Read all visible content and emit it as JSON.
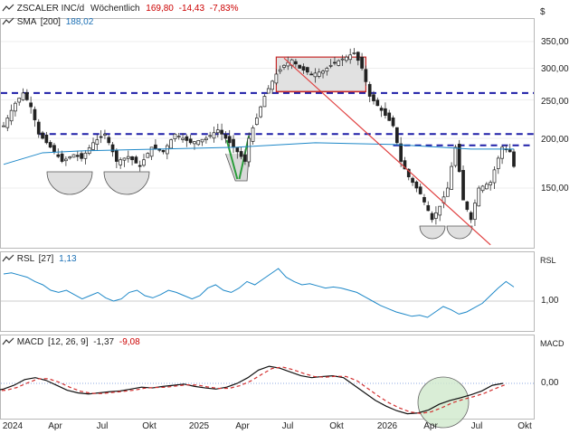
{
  "header": {
    "symbol": "ZSCALER INC/d",
    "interval": "Wöchentlich",
    "price": "169,80",
    "change": "-14,43",
    "change_pct": "-7,83%",
    "sma_label": "SMA",
    "sma_period": "[200]",
    "sma_value": "188,02",
    "currency": "$"
  },
  "rsl_panel": {
    "label": "RSL",
    "period": "[27]",
    "value": "1,13",
    "axis_title": "RSL"
  },
  "macd_panel": {
    "label": "MACD",
    "params": "[12, 26, 9]",
    "value": "-1,37",
    "signal": "-9,08",
    "axis_title": "MACD"
  },
  "price_axis": [
    "350,00",
    "300,00",
    "250,00",
    "200,00",
    "150,00"
  ],
  "rsl_axis": [
    "1,00"
  ],
  "macd_axis": [
    "0,00"
  ],
  "x_axis": [
    "2024",
    "Apr",
    "Jul",
    "Okt",
    "2025",
    "Apr",
    "Jul",
    "Okt",
    "2026",
    "Apr",
    "Jul",
    "Okt"
  ],
  "colors": {
    "up": "#2e7d32",
    "down": "#c62828",
    "sma": "#1e88c8",
    "support": "#1f1fa8",
    "trendline": "#e04040",
    "pattern_fill": "#d9d9d9",
    "pattern_green": "#2a9d3a",
    "macd": "#111111",
    "macd_signal": "#d32f2f"
  },
  "chart_data": [
    {
      "type": "candlestick",
      "title": "ZSCALER INC/d",
      "period": "weekly",
      "x_start": "2024-01",
      "ylim": [
        105,
        370
      ],
      "y_scale": "log",
      "close_trace": [
        [
          0,
          215
        ],
        [
          3,
          245
        ],
        [
          5,
          260
        ],
        [
          7,
          240
        ],
        [
          9,
          205
        ],
        [
          12,
          190
        ],
        [
          15,
          175
        ],
        [
          18,
          182
        ],
        [
          20,
          178
        ],
        [
          23,
          195
        ],
        [
          26,
          205
        ],
        [
          29,
          175
        ],
        [
          32,
          180
        ],
        [
          35,
          170
        ],
        [
          38,
          190
        ],
        [
          41,
          185
        ],
        [
          44,
          205
        ],
        [
          48,
          195
        ],
        [
          52,
          200
        ],
        [
          55,
          210
        ],
        [
          58,
          195
        ],
        [
          60,
          185
        ],
        [
          62,
          175
        ],
        [
          63,
          200
        ],
        [
          65,
          225
        ],
        [
          67,
          255
        ],
        [
          70,
          290
        ],
        [
          72,
          305
        ],
        [
          74,
          315
        ],
        [
          76,
          300
        ],
        [
          79,
          290
        ],
        [
          82,
          295
        ],
        [
          85,
          310
        ],
        [
          88,
          320
        ],
        [
          90,
          328
        ],
        [
          92,
          300
        ],
        [
          94,
          255
        ],
        [
          97,
          235
        ],
        [
          100,
          215
        ],
        [
          102,
          175
        ],
        [
          104,
          160
        ],
        [
          107,
          145
        ],
        [
          110,
          125
        ],
        [
          112,
          135
        ],
        [
          114,
          150
        ],
        [
          116,
          190
        ],
        [
          118,
          140
        ],
        [
          120,
          125
        ],
        [
          122,
          150
        ],
        [
          125,
          155
        ],
        [
          128,
          190
        ],
        [
          130,
          185
        ],
        [
          131,
          170
        ]
      ],
      "sma200_trace": [
        [
          0,
          172
        ],
        [
          10,
          184
        ],
        [
          20,
          186
        ],
        [
          40,
          188
        ],
        [
          60,
          190
        ],
        [
          80,
          195
        ],
        [
          100,
          193
        ],
        [
          120,
          188
        ],
        [
          131,
          188
        ]
      ],
      "support_levels": [
        260,
        205,
        192
      ],
      "annotations": [
        "rectangle 262–320",
        "downtrend line",
        "rounded bottoms"
      ]
    },
    {
      "type": "line",
      "title": "RSL [27]",
      "series": [
        {
          "name": "RSL",
          "values": [
            1.25,
            1.26,
            1.24,
            1.22,
            1.18,
            1.15,
            1.1,
            1.08,
            1.1,
            1.06,
            1.02,
            1.05,
            1.08,
            1.03,
            1.0,
            1.02,
            1.08,
            1.1,
            1.05,
            1.03,
            1.06,
            1.1,
            1.08,
            1.05,
            1.02,
            1.05,
            1.12,
            1.15,
            1.1,
            1.08,
            1.12,
            1.18,
            1.15,
            1.2,
            1.25,
            1.3,
            1.22,
            1.18,
            1.15,
            1.16,
            1.14,
            1.12,
            1.13,
            1.12,
            1.1,
            1.08,
            1.04,
            1.0,
            0.96,
            0.93,
            0.9,
            0.88,
            0.86,
            0.87,
            0.85,
            0.9,
            0.95,
            0.92,
            0.88,
            0.9,
            0.94,
            0.98,
            1.05,
            1.12,
            1.18,
            1.13
          ]
        }
      ],
      "reference": 1.0
    },
    {
      "type": "line",
      "title": "MACD [12, 26, 9]",
      "series": [
        {
          "name": "MACD",
          "values": [
            -20,
            -15,
            -5,
            10,
            15,
            8,
            -5,
            -18,
            -25,
            -28,
            -25,
            -22,
            -20,
            -15,
            -10,
            -12,
            -8,
            -5,
            -2,
            -8,
            -12,
            -15,
            -10,
            0,
            15,
            35,
            45,
            40,
            30,
            20,
            15,
            18,
            20,
            15,
            -5,
            -25,
            -45,
            -60,
            -72,
            -80,
            -78,
            -70,
            -55,
            -45,
            -38,
            -30,
            -20,
            -5,
            0
          ]
        }
      ],
      "reference": 0
    }
  ]
}
